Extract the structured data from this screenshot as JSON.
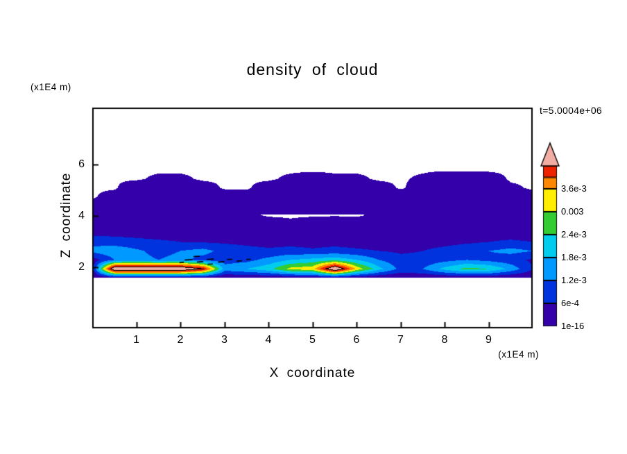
{
  "title": "density of cloud",
  "time_label": "t=5.0004e+06",
  "axes": {
    "x_label": "X coordinate",
    "x_unit": "(x1E4 m)",
    "z_label": "Z coordinate",
    "z_unit": "(x1E4 m)",
    "x_ticks": [
      "1",
      "2",
      "3",
      "4",
      "5",
      "6",
      "7",
      "8",
      "9"
    ],
    "x_tick_values": [
      1,
      2,
      3,
      4,
      5,
      6,
      7,
      8,
      9
    ],
    "z_ticks": [
      "2",
      "4",
      "6"
    ],
    "z_tick_values": [
      2,
      4,
      6
    ],
    "x_range": [
      0,
      10
    ],
    "z_range": [
      -0.4,
      8.2
    ]
  },
  "colorbar": {
    "labels_top_to_bottom": [
      "3.6e-3",
      "0.003",
      "2.4e-3",
      "1.8e-3",
      "1.2e-3",
      "6e-4",
      "1e-16"
    ],
    "segments_bottom_to_top": [
      {
        "color": "#3300aa",
        "label": "1e-16"
      },
      {
        "color": "#0033dd",
        "label": "6e-4"
      },
      {
        "color": "#0099ff",
        "label": "1.2e-3"
      },
      {
        "color": "#00ccee",
        "label": "1.8e-3"
      },
      {
        "color": "#33cc33",
        "label": "2.4e-3"
      },
      {
        "color": "#ffee00",
        "label": "0.003"
      },
      {
        "color": "#ff8800",
        "label": "3.6e-3"
      },
      {
        "color": "#ee2200",
        "label": ""
      }
    ],
    "overflow_arrow_color": "#f2ada4",
    "outline_color": "#000000"
  },
  "chart_data": {
    "type": "heatmap",
    "title": "density of cloud",
    "xlabel": "X coordinate (x1E4 m)",
    "ylabel": "Z coordinate (x1E4 m)",
    "x_range": [
      0,
      10
    ],
    "z_range": [
      -0.4,
      8.2
    ],
    "contour_levels": [
      "1e-16",
      "6e-4",
      "1.2e-3",
      "1.8e-3",
      "2.4e-3",
      "0.003",
      "3.6e-3"
    ],
    "value_note": "grid values are density in units of 1e-3, estimated from fill colors",
    "grid_x0": 0,
    "grid_x1": 10,
    "grid_z0": 1.6,
    "grid_z1": 5.8,
    "grid_nx": 21,
    "grid_nz": 13,
    "grid": [
      [
        0,
        0,
        0,
        0,
        0,
        0,
        0,
        0,
        0,
        0,
        0,
        0,
        0,
        0,
        0,
        0,
        0,
        0,
        0,
        0,
        0
      ],
      [
        0.4,
        6,
        6,
        6,
        6,
        5,
        1.5,
        1.8,
        2.2,
        3.2,
        3.4,
        6,
        3.4,
        2.0,
        1.0,
        1.2,
        2.0,
        2.6,
        2.4,
        1.6,
        0.6
      ],
      [
        0.3,
        1.2,
        1.4,
        1.2,
        1.4,
        1.0,
        0.9,
        1.0,
        1.4,
        1.8,
        2.0,
        2.2,
        1.8,
        1.2,
        0.8,
        0.8,
        1.0,
        1.2,
        1.0,
        0.8,
        0.5
      ],
      [
        1.4,
        1.6,
        1.3,
        1.0,
        1.2,
        1.4,
        1.0,
        0.8,
        0.7,
        0.8,
        0.7,
        0.8,
        0.7,
        0.6,
        0.5,
        0.6,
        0.8,
        1.0,
        1.2,
        1.4,
        1.2
      ],
      [
        1.0,
        0.9,
        0.8,
        0.7,
        0.6,
        0.55,
        0.5,
        0.45,
        0.4,
        0.4,
        0.35,
        0.4,
        0.35,
        0.3,
        0.3,
        0.35,
        0.4,
        0.5,
        0.6,
        0.7,
        0.6
      ],
      [
        0.4,
        0.4,
        0.35,
        0.3,
        0.3,
        0.3,
        0.25,
        0.2,
        0.15,
        0.2,
        0.25,
        0.25,
        0.2,
        0.2,
        0.25,
        0.3,
        0.3,
        0.3,
        0.35,
        0.3,
        0.25
      ],
      [
        0.05,
        0.1,
        0.3,
        0.35,
        0.3,
        0.3,
        0.25,
        0.2,
        0.1,
        0.05,
        0.1,
        0.15,
        0.1,
        0.1,
        0.2,
        0.3,
        0.3,
        0.25,
        0.3,
        0.25,
        0.2
      ],
      [
        0.15,
        0.25,
        0.3,
        0.3,
        0.25,
        0.3,
        0.2,
        0.05,
        0,
        0,
        0,
        0,
        0,
        0.05,
        0.2,
        0.25,
        0.3,
        0.3,
        0.25,
        0.2,
        0.2
      ],
      [
        0.1,
        0.2,
        0.25,
        0.3,
        0.3,
        0.25,
        0.25,
        0.2,
        0.25,
        0.3,
        0.3,
        0.25,
        0.3,
        0.25,
        0.25,
        0.3,
        0.25,
        0.3,
        0.3,
        0.25,
        0.2
      ],
      [
        0,
        0.1,
        0.2,
        0.25,
        0.25,
        0.2,
        0.15,
        0.1,
        0.2,
        0.25,
        0.25,
        0.2,
        0.25,
        0.2,
        0.15,
        0.2,
        0.15,
        0.2,
        0.15,
        0.1,
        0.1
      ],
      [
        0,
        0,
        0.15,
        0.2,
        0.15,
        0.1,
        0,
        0,
        0.1,
        0.15,
        0.2,
        0.15,
        0.15,
        0.1,
        0,
        0.1,
        0.2,
        0.2,
        0.15,
        0.05,
        0
      ],
      [
        0,
        0,
        0,
        0.05,
        0.05,
        0,
        0,
        0,
        0,
        0.05,
        0.1,
        0.05,
        0.05,
        0,
        0,
        0.05,
        0.15,
        0.15,
        0.1,
        0,
        0
      ],
      [
        0,
        0,
        0,
        0,
        0,
        0,
        0,
        0,
        0,
        0,
        0,
        0,
        0,
        0,
        0,
        0,
        0,
        0,
        0,
        0,
        0
      ]
    ],
    "level_thresholds": [
      0.02,
      0.6,
      1.2,
      1.8,
      2.4,
      3.0,
      3.6,
      4.2,
      4.8
    ],
    "level_colors": [
      "#ffffff",
      "#3300aa",
      "#0033dd",
      "#0099ff",
      "#00ccee",
      "#33cc33",
      "#ffee00",
      "#ff8800",
      "#ee2200",
      "#f2ada4"
    ],
    "overflow_outline_color": "#000000",
    "contour_dashes": [
      [
        2.1,
        2.28,
        2.28,
        2.3
      ],
      [
        2.38,
        2.2,
        2.52,
        2.22
      ],
      [
        2.6,
        2.3,
        2.76,
        2.32
      ],
      [
        2.86,
        2.2,
        3.0,
        2.22
      ],
      [
        3.06,
        2.3,
        3.18,
        2.31
      ],
      [
        2.3,
        2.42,
        2.44,
        2.43
      ],
      [
        2.62,
        2.12,
        2.74,
        2.13
      ],
      [
        3.28,
        2.24,
        3.4,
        2.25
      ],
      [
        1.98,
        2.18,
        2.08,
        2.2
      ],
      [
        3.5,
        2.3,
        3.6,
        2.31
      ]
    ]
  }
}
